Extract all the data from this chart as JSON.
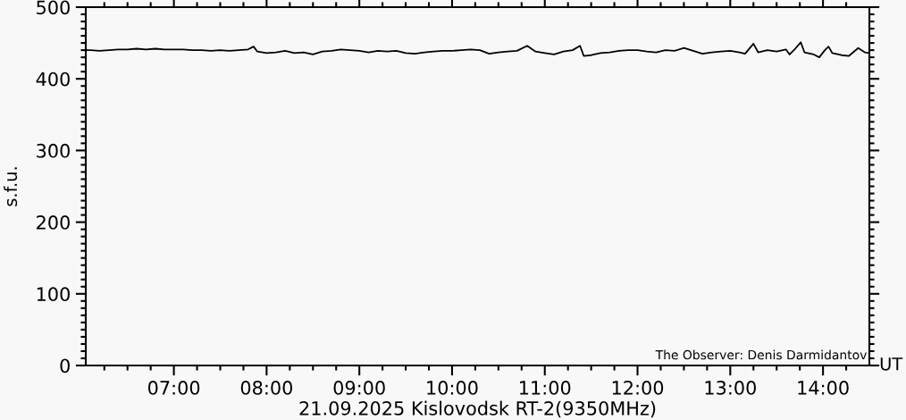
{
  "chart_data": {
    "type": "line",
    "xlabel": "21.09.2025 Kislovodsk RT-2(9350MHz)",
    "ylabel": "s.f.u.",
    "annotations": [
      "The Observer: Denis Darmidantov",
      "UT"
    ],
    "x": [
      6.06,
      6.1,
      6.2,
      6.3,
      6.4,
      6.5,
      6.6,
      6.7,
      6.8,
      6.9,
      7.0,
      7.1,
      7.2,
      7.3,
      7.4,
      7.5,
      7.6,
      7.7,
      7.8,
      7.86,
      7.9,
      8.0,
      8.1,
      8.2,
      8.3,
      8.4,
      8.5,
      8.6,
      8.7,
      8.8,
      8.9,
      9.0,
      9.1,
      9.2,
      9.3,
      9.4,
      9.5,
      9.6,
      9.7,
      9.8,
      9.9,
      10.0,
      10.1,
      10.2,
      10.3,
      10.4,
      10.5,
      10.6,
      10.7,
      10.81,
      10.9,
      11.0,
      11.1,
      11.2,
      11.3,
      11.38,
      11.42,
      11.5,
      11.6,
      11.7,
      11.8,
      11.9,
      12.0,
      12.1,
      12.2,
      12.3,
      12.4,
      12.5,
      12.6,
      12.7,
      12.8,
      12.9,
      13.0,
      13.1,
      13.16,
      13.25,
      13.3,
      13.4,
      13.5,
      13.6,
      13.64,
      13.7,
      13.76,
      13.8,
      13.9,
      13.96,
      14.02,
      14.06,
      14.1,
      14.2,
      14.28,
      14.38,
      14.45,
      14.5
    ],
    "series": [
      {
        "color": "#000000",
        "values": [
          440,
          440,
          439,
          440,
          441,
          441,
          442,
          441,
          442,
          441,
          441,
          441,
          440,
          440,
          439,
          440,
          439,
          440,
          441,
          445,
          438,
          436,
          437,
          439,
          436,
          437,
          434,
          438,
          439,
          441,
          440,
          439,
          437,
          439,
          438,
          439,
          436,
          435,
          437,
          438,
          439,
          439,
          440,
          441,
          440,
          435,
          437,
          438,
          439,
          446,
          438,
          436,
          434,
          438,
          440,
          446,
          432,
          433,
          436,
          437,
          439,
          440,
          440,
          438,
          437,
          440,
          439,
          443,
          439,
          435,
          437,
          438,
          439,
          437,
          435,
          449,
          437,
          440,
          438,
          441,
          434,
          442,
          451,
          437,
          434,
          430,
          440,
          445,
          436,
          433,
          432,
          443,
          437,
          436
        ]
      }
    ],
    "xlim": [
      6.05,
      14.5
    ],
    "ylim": [
      0,
      500
    ],
    "xticks": [
      {
        "value": 6.25,
        "label": null
      },
      {
        "value": 6.5,
        "label": null
      },
      {
        "value": 6.75,
        "label": null
      },
      {
        "value": 7,
        "label": "07:00"
      },
      {
        "value": 7.25,
        "label": null
      },
      {
        "value": 7.5,
        "label": null
      },
      {
        "value": 7.75,
        "label": null
      },
      {
        "value": 8,
        "label": "08:00"
      },
      {
        "value": 8.25,
        "label": null
      },
      {
        "value": 8.5,
        "label": null
      },
      {
        "value": 8.75,
        "label": null
      },
      {
        "value": 9,
        "label": "09:00"
      },
      {
        "value": 9.25,
        "label": null
      },
      {
        "value": 9.5,
        "label": null
      },
      {
        "value": 9.75,
        "label": null
      },
      {
        "value": 10,
        "label": "10:00"
      },
      {
        "value": 10.25,
        "label": null
      },
      {
        "value": 10.5,
        "label": null
      },
      {
        "value": 10.75,
        "label": null
      },
      {
        "value": 11,
        "label": "11:00"
      },
      {
        "value": 11.25,
        "label": null
      },
      {
        "value": 11.5,
        "label": null
      },
      {
        "value": 11.75,
        "label": null
      },
      {
        "value": 12,
        "label": "12:00"
      },
      {
        "value": 12.25,
        "label": null
      },
      {
        "value": 12.5,
        "label": null
      },
      {
        "value": 12.75,
        "label": null
      },
      {
        "value": 13,
        "label": "13:00"
      },
      {
        "value": 13.25,
        "label": null
      },
      {
        "value": 13.5,
        "label": null
      },
      {
        "value": 13.75,
        "label": null
      },
      {
        "value": 14,
        "label": "14:00"
      },
      {
        "value": 14.25,
        "label": null
      }
    ],
    "yticks": [
      0,
      {
        "value": 10,
        "label": null
      },
      {
        "value": 20,
        "label": null
      },
      {
        "value": 30,
        "label": null
      },
      {
        "value": 40,
        "label": null
      },
      {
        "value": 50,
        "label": null
      },
      {
        "value": 60,
        "label": null
      },
      {
        "value": 70,
        "label": null
      },
      {
        "value": 80,
        "label": null
      },
      {
        "value": 90,
        "label": null
      },
      100,
      {
        "value": 110,
        "label": null
      },
      {
        "value": 120,
        "label": null
      },
      {
        "value": 130,
        "label": null
      },
      {
        "value": 140,
        "label": null
      },
      {
        "value": 150,
        "label": null
      },
      {
        "value": 160,
        "label": null
      },
      {
        "value": 170,
        "label": null
      },
      {
        "value": 180,
        "label": null
      },
      {
        "value": 190,
        "label": null
      },
      200,
      {
        "value": 210,
        "label": null
      },
      {
        "value": 220,
        "label": null
      },
      {
        "value": 230,
        "label": null
      },
      {
        "value": 240,
        "label": null
      },
      {
        "value": 250,
        "label": null
      },
      {
        "value": 260,
        "label": null
      },
      {
        "value": 270,
        "label": null
      },
      {
        "value": 280,
        "label": null
      },
      {
        "value": 290,
        "label": null
      },
      300,
      {
        "value": 310,
        "label": null
      },
      {
        "value": 320,
        "label": null
      },
      {
        "value": 330,
        "label": null
      },
      {
        "value": 340,
        "label": null
      },
      {
        "value": 350,
        "label": null
      },
      {
        "value": 360,
        "label": null
      },
      {
        "value": 370,
        "label": null
      },
      {
        "value": 380,
        "label": null
      },
      {
        "value": 390,
        "label": null
      },
      400,
      {
        "value": 410,
        "label": null
      },
      {
        "value": 420,
        "label": null
      },
      {
        "value": 430,
        "label": null
      },
      {
        "value": 440,
        "label": null
      },
      {
        "value": 450,
        "label": null
      },
      {
        "value": 460,
        "label": null
      },
      {
        "value": 470,
        "label": null
      },
      {
        "value": 480,
        "label": null
      },
      {
        "value": 490,
        "label": null
      },
      500
    ],
    "grid": false,
    "line_style": "solid",
    "marker": "none"
  }
}
